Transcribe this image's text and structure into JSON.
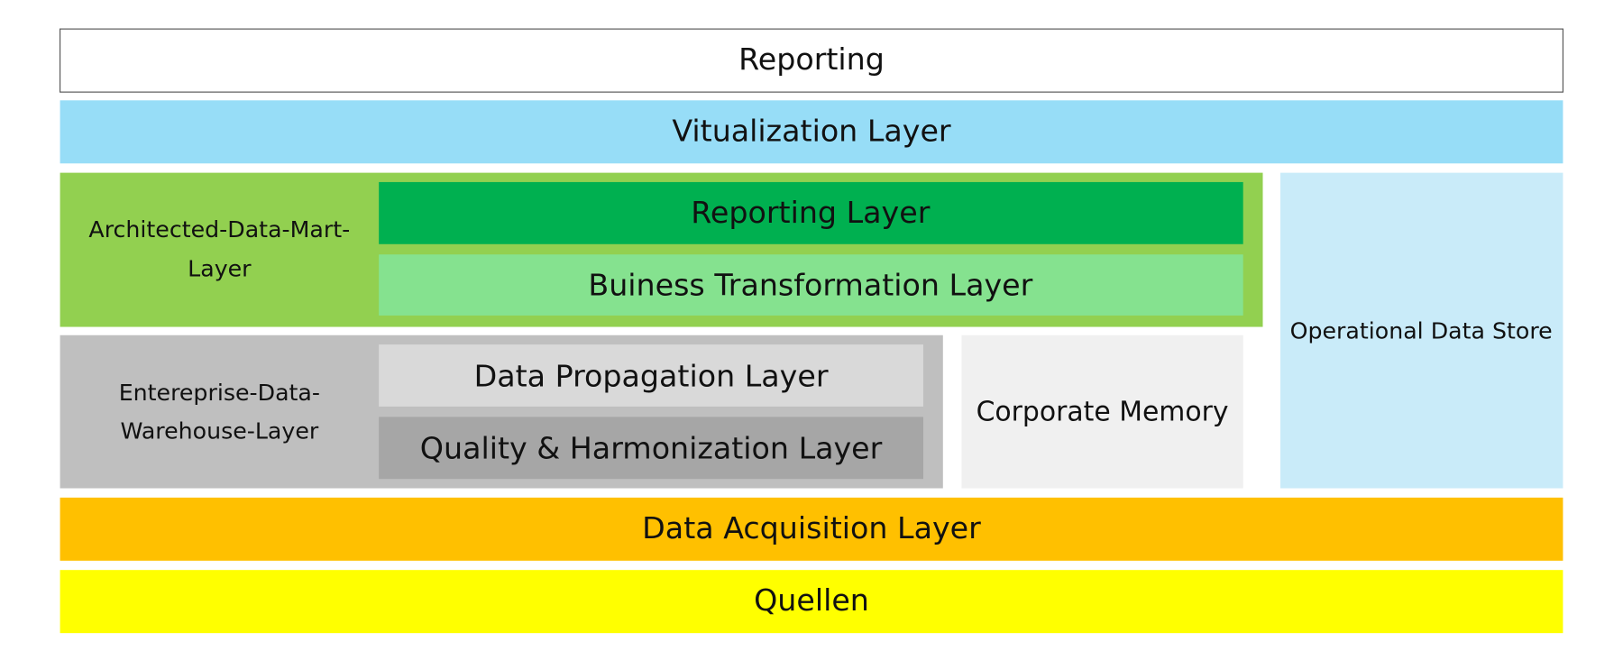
{
  "layers": {
    "reporting": "Reporting",
    "virtualization": "Vitualization Layer",
    "architected_data_mart": {
      "lines": [
        "Architected-Data-Mart-",
        "Layer"
      ]
    },
    "reporting_layer": "Reporting Layer",
    "business_transformation": "Buiness Transformation Layer",
    "operational_data_store": "Operational Data Store",
    "enterprise_data_warehouse": {
      "lines": [
        "Entereprise-Data-",
        "Warehouse-Layer"
      ]
    },
    "data_propagation": "Data Propagation Layer",
    "quality_harmonization": "Quality & Harmonization Layer",
    "corporate_memory": "Corporate Memory",
    "data_acquisition": "Data Acquisition Layer",
    "quellen": "Quellen"
  }
}
